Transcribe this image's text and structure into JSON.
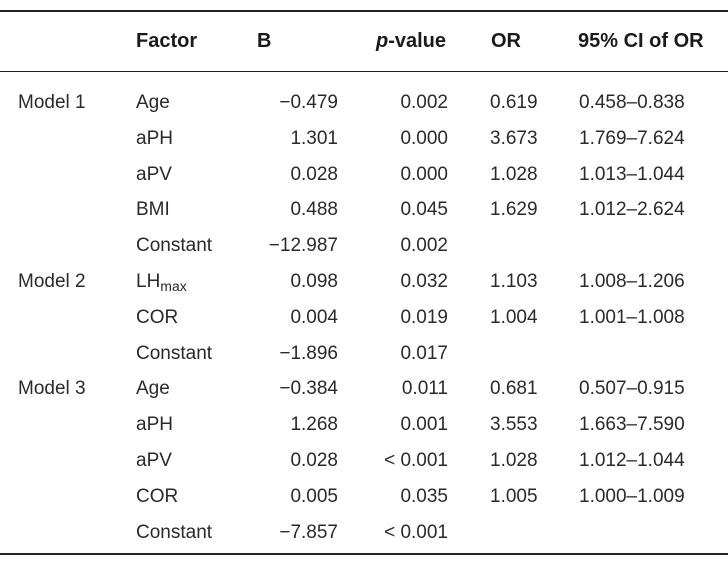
{
  "table": {
    "headers": {
      "factor": "Factor",
      "b": "B",
      "p_prefix": "p",
      "p_suffix": "-value",
      "or": "OR",
      "ci": "95% CI of OR"
    },
    "rows": [
      {
        "model": "Model 1",
        "factor": "Age",
        "factor_sub": "",
        "b": "−0.479",
        "p": "0.002",
        "or": "0.619",
        "ci": "0.458–0.838"
      },
      {
        "model": "",
        "factor": "aPH",
        "factor_sub": "",
        "b": "1.301",
        "p": "0.000",
        "or": "3.673",
        "ci": "1.769–7.624"
      },
      {
        "model": "",
        "factor": "aPV",
        "factor_sub": "",
        "b": "0.028",
        "p": "0.000",
        "or": "1.028",
        "ci": "1.013–1.044"
      },
      {
        "model": "",
        "factor": "BMI",
        "factor_sub": "",
        "b": "0.488",
        "p": "0.045",
        "or": "1.629",
        "ci": "1.012–2.624"
      },
      {
        "model": "",
        "factor": "Constant",
        "factor_sub": "",
        "b": "−12.987",
        "p": "0.002",
        "or": "",
        "ci": ""
      },
      {
        "model": "Model 2",
        "factor": "LH",
        "factor_sub": "max",
        "b": "0.098",
        "p": "0.032",
        "or": "1.103",
        "ci": "1.008–1.206"
      },
      {
        "model": "",
        "factor": "COR",
        "factor_sub": "",
        "b": "0.004",
        "p": "0.019",
        "or": "1.004",
        "ci": "1.001–1.008"
      },
      {
        "model": "",
        "factor": "Constant",
        "factor_sub": "",
        "b": "−1.896",
        "p": "0.017",
        "or": "",
        "ci": ""
      },
      {
        "model": "Model 3",
        "factor": "Age",
        "factor_sub": "",
        "b": "−0.384",
        "p": "0.011",
        "or": "0.681",
        "ci": "0.507–0.915"
      },
      {
        "model": "",
        "factor": "aPH",
        "factor_sub": "",
        "b": "1.268",
        "p": "0.001",
        "or": "3.553",
        "ci": "1.663–7.590"
      },
      {
        "model": "",
        "factor": "aPV",
        "factor_sub": "",
        "b": "0.028",
        "p": "< 0.001",
        "or": "1.028",
        "ci": "1.012–1.044"
      },
      {
        "model": "",
        "factor": "COR",
        "factor_sub": "",
        "b": "0.005",
        "p": "0.035",
        "or": "1.005",
        "ci": "1.000–1.009"
      },
      {
        "model": "",
        "factor": "Constant",
        "factor_sub": "",
        "b": "−7.857",
        "p": "< 0.001",
        "or": "",
        "ci": ""
      }
    ]
  }
}
